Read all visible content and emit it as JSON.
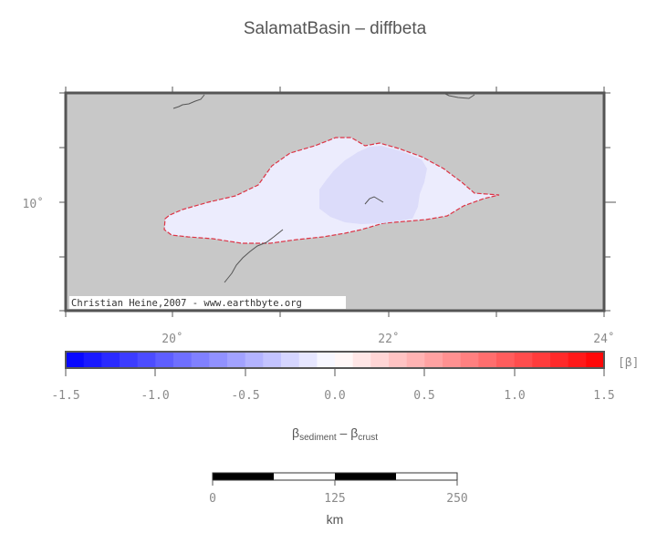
{
  "title": "SalamatBasin – diffbeta",
  "map": {
    "lat_label": "10˚",
    "lon_labels": [
      "20˚",
      "22˚",
      "24˚"
    ],
    "credit": "Christian Heine,2007 - www.earthbyte.org",
    "colors": {
      "background": "#c8c8c8",
      "basin_fill": "#ececfd",
      "basin_core": "#dcdcfa",
      "basin_outline": "#dd3344",
      "coastline": "#555555"
    }
  },
  "colorbar": {
    "unit": "[β]",
    "tick_labels": [
      "-1.5",
      "-1.0",
      "-0.5",
      "0.0",
      "0.5",
      "1.0",
      "1.5"
    ],
    "min": -1.5,
    "max": 1.5,
    "steps": 30,
    "label_main": "β",
    "label_sub1": "sediment",
    "label_mid": " – β",
    "label_sub2": "crust"
  },
  "scalebar": {
    "tick_labels": [
      "0",
      "125",
      "250"
    ],
    "unit": "km"
  }
}
